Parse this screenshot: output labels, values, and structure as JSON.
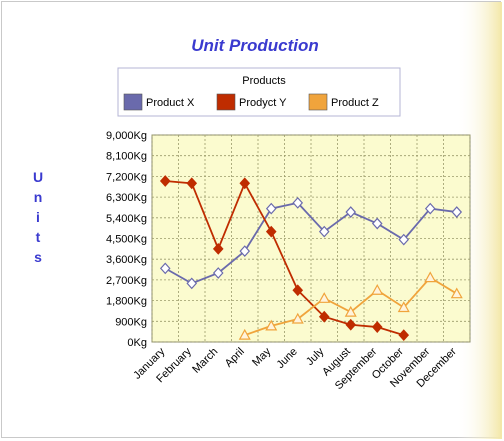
{
  "chart_data": {
    "type": "line",
    "title": "Unit Production",
    "legend_title": "Products",
    "legend_position": "top",
    "ylabel": "Units",
    "ylim": [
      0,
      9000
    ],
    "yticks": [
      "0Kg",
      "900Kg",
      "1,800Kg",
      "2,700Kg",
      "3,600Kg",
      "4,500Kg",
      "5,400Kg",
      "6,300Kg",
      "7,200Kg",
      "8,100Kg",
      "9,000Kg"
    ],
    "grid": true,
    "plot_background": "#fbfbcf",
    "categories": [
      "January",
      "February",
      "March",
      "April",
      "May",
      "June",
      "July",
      "August",
      "September",
      "October",
      "November",
      "December"
    ],
    "series": [
      {
        "name": "Product X",
        "color": "#6a6aac",
        "marker": "diamond",
        "values": [
          3200,
          2550,
          3000,
          3950,
          5800,
          6050,
          4800,
          5650,
          5150,
          4450,
          5800,
          5650
        ]
      },
      {
        "name": "Prodyct Y",
        "color": "#bf2c00",
        "marker": "diamond",
        "values": [
          7000,
          6900,
          4050,
          6900,
          4800,
          2250,
          1100,
          750,
          650,
          300,
          null,
          null
        ]
      },
      {
        "name": "Product Z",
        "color": "#f0a43c",
        "marker": "triangle",
        "values": [
          null,
          null,
          null,
          300,
          700,
          1000,
          1900,
          1300,
          2250,
          1500,
          2800,
          2100
        ]
      }
    ]
  }
}
